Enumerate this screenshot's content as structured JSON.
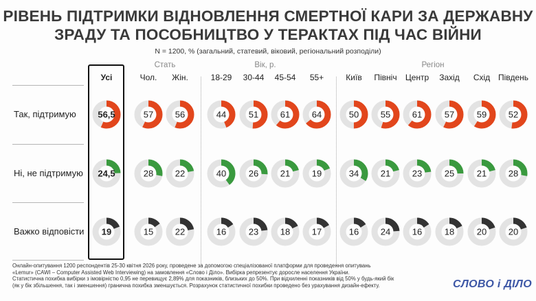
{
  "header": {
    "title_line1": "РІВЕНЬ ПІДТРИМКИ ВІДНОВЛЕННЯ СМЕРТНОЇ КАРИ ЗА ДЕРЖАВНУ",
    "title_line2": "ЗРАДУ ТА ПОСОБНИЦТВО У ТЕРАКТАХ ПІД ЧАС ВІЙНИ",
    "subtitle": "N = 1200, % (загальний, статевий, віковий, регіональний розподіли)"
  },
  "groups": {
    "gender": "Стать",
    "age": "Вік, р.",
    "region": "Регіон"
  },
  "colors": {
    "support": "#e2461c",
    "oppose": "#3a9a3f",
    "hard": "#333333",
    "track": "#e3e3e3"
  },
  "chart_data": {
    "type": "donut-matrix",
    "categories": [
      "Усі",
      "Чол.",
      "Жін.",
      "18-29",
      "30-44",
      "45-54",
      "55+",
      "Київ",
      "Північ",
      "Центр",
      "Захід",
      "Схід",
      "Південь"
    ],
    "series": [
      {
        "name": "Так, підтримую",
        "values": [
          "56,5",
          "57",
          "56",
          "44",
          "51",
          "61",
          "64",
          "50",
          "55",
          "61",
          "57",
          "59",
          "52"
        ]
      },
      {
        "name": "Ні, не підтримую",
        "values": [
          "24,5",
          "28",
          "22",
          "40",
          "26",
          "21",
          "19",
          "34",
          "21",
          "23",
          "25",
          "21",
          "28"
        ]
      },
      {
        "name": "Важко відповісти",
        "values": [
          "19",
          "15",
          "22",
          "16",
          "23",
          "18",
          "17",
          "16",
          "24",
          "16",
          "18",
          "20",
          "20"
        ]
      }
    ],
    "scale_max": 100
  },
  "footer": {
    "line1": "Онлайн-опитування 1200 респондентів 25-30 квітня 2026 року, проведене за допомогою спеціалізованої платформи для проведення опитувань",
    "line2": "«Lemur» (CAWI – Computer Assisted Web Interviewing) на замовлення «Слово і Діло». Вибірка репрезентує доросле населення України.",
    "line3": "Статистична похибка вибірки з імовірністю 0,95 не перевищує 2,89% для показників, близьких до 50%. При відхиленні показників від 50% у будь-який бік",
    "line4": "(як у бік збільшення, так і зменшення) гранична похибка зменшується. Розрахунок статистичної похибки проведено без урахування дизайн-ефекту."
  },
  "logo": "СЛОВО і ДІЛО"
}
